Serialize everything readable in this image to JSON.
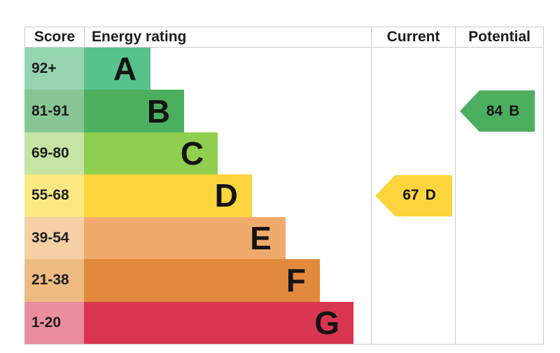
{
  "header": {
    "score": "Score",
    "energy_rating": "Energy rating",
    "current": "Current",
    "potential": "Potential"
  },
  "rows": [
    {
      "score": "92+",
      "letter": "A",
      "bar_color": "#57c28c",
      "score_color": "#96d4af",
      "width_pct": 23.2
    },
    {
      "score": "81-91",
      "letter": "B",
      "bar_color": "#4cae5f",
      "score_color": "#86c694",
      "width_pct": 34.9
    },
    {
      "score": "69-80",
      "letter": "C",
      "bar_color": "#8fce4e",
      "score_color": "#c6e5a5",
      "width_pct": 46.6
    },
    {
      "score": "55-68",
      "letter": "D",
      "bar_color": "#fcd43d",
      "score_color": "#fae983",
      "width_pct": 58.5
    },
    {
      "score": "39-54",
      "letter": "E",
      "bar_color": "#f0aa6d",
      "score_color": "#f4d0a4",
      "width_pct": 70.2
    },
    {
      "score": "21-38",
      "letter": "F",
      "bar_color": "#e18a3d",
      "score_color": "#edbb82",
      "width_pct": 82.2
    },
    {
      "score": "1-20",
      "letter": "G",
      "bar_color": "#da3550",
      "score_color": "#ea8d9e",
      "width_pct": 93.9
    }
  ],
  "current_marker": {
    "value": "67",
    "band": "D",
    "color": "#fcd43d",
    "row_index": 3
  },
  "potential_marker": {
    "value": "84",
    "band": "B",
    "color": "#4cae5f",
    "row_index": 1
  },
  "colors": {
    "border": "#cccccc",
    "text": "#1d1d1d",
    "background": "#ffffff"
  },
  "chart_data": {
    "type": "bar",
    "title": "Energy rating",
    "categories": [
      "A",
      "B",
      "C",
      "D",
      "E",
      "F",
      "G"
    ],
    "score_ranges": [
      "92+",
      "81-91",
      "69-80",
      "55-68",
      "39-54",
      "21-38",
      "1-20"
    ],
    "bar_lengths_pct": [
      23.2,
      34.9,
      46.6,
      58.5,
      70.2,
      82.2,
      93.9
    ],
    "band_colors": [
      "#57c28c",
      "#4cae5f",
      "#8fce4e",
      "#fcd43d",
      "#f0aa6d",
      "#e18a3d",
      "#da3550"
    ],
    "columns": [
      "Score",
      "Energy rating",
      "Current",
      "Potential"
    ],
    "current": {
      "score": 67,
      "band": "D"
    },
    "potential": {
      "score": 84,
      "band": "B"
    },
    "legend_position": "none",
    "grid": false
  }
}
